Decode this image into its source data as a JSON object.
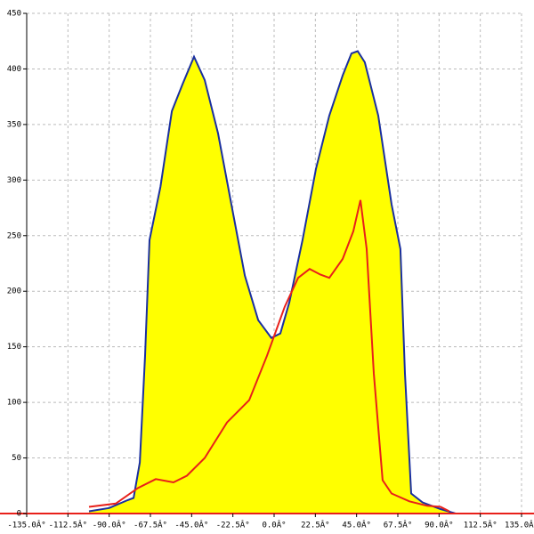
{
  "chart_data": {
    "type": "area-line",
    "xlim": [
      -135,
      135
    ],
    "ylim": [
      0,
      450
    ],
    "xticks": [
      {
        "value": -135,
        "label": "-135.0Â°"
      },
      {
        "value": -112.5,
        "label": "-112.5Â°"
      },
      {
        "value": -90,
        "label": "-90.0Â°"
      },
      {
        "value": -67.5,
        "label": "-67.5Â°"
      },
      {
        "value": -45,
        "label": "-45.0Â°"
      },
      {
        "value": -22.5,
        "label": "-22.5Â°"
      },
      {
        "value": 0,
        "label": "0.0Â°"
      },
      {
        "value": 22.5,
        "label": "22.5Â°"
      },
      {
        "value": 45,
        "label": "45.0Â°"
      },
      {
        "value": 67.5,
        "label": "67.5Â°"
      },
      {
        "value": 90,
        "label": "90.0Â°"
      },
      {
        "value": 112.5,
        "label": "112.5Â°"
      },
      {
        "value": 135,
        "label": "135.0Â°"
      }
    ],
    "yticks": [
      0,
      50,
      100,
      150,
      200,
      250,
      300,
      350,
      400,
      450
    ],
    "grid": true,
    "series": [
      {
        "color": "#1a2fa0",
        "fill": "#ffff00",
        "x": [
          -101,
          -90,
          -80,
          -76.7,
          -73.3,
          -70.4,
          -68,
          -62,
          -55.8,
          -50,
          -43.7,
          -37.9,
          -30.6,
          -23.3,
          -16,
          -8.7,
          -1.5,
          3.4,
          8.3,
          15.5,
          22.8,
          30.1,
          37.4,
          42.2,
          45.6,
          49.5,
          56.8,
          64.1,
          68.9,
          71.4,
          74.8,
          81,
          90.8,
          99
        ],
        "values": [
          2,
          5,
          12,
          14,
          46,
          142,
          246,
          294,
          362,
          386,
          411,
          390,
          342,
          278,
          214,
          174,
          158,
          162,
          190,
          246,
          310,
          358,
          394,
          414,
          416,
          406,
          358,
          278,
          238,
          126,
          18,
          10,
          4,
          0
        ]
      },
      {
        "color": "#e8201a",
        "x": [
          -101,
          -86.4,
          -74.3,
          -64.6,
          -54.9,
          -47.6,
          -37.9,
          -25.7,
          -13.6,
          -3.9,
          5.8,
          13.1,
          19.4,
          25.2,
          30.1,
          37.4,
          43.2,
          47.1,
          50.5,
          54.4,
          59.2,
          64.1,
          73.8,
          83.5,
          90.8,
          95.6
        ],
        "values": [
          6,
          9,
          23,
          31,
          28,
          34,
          50,
          82,
          102,
          142,
          186,
          212,
          220,
          215,
          212,
          229,
          254,
          282,
          238,
          126,
          30,
          18,
          11,
          7,
          6,
          2
        ]
      }
    ]
  }
}
